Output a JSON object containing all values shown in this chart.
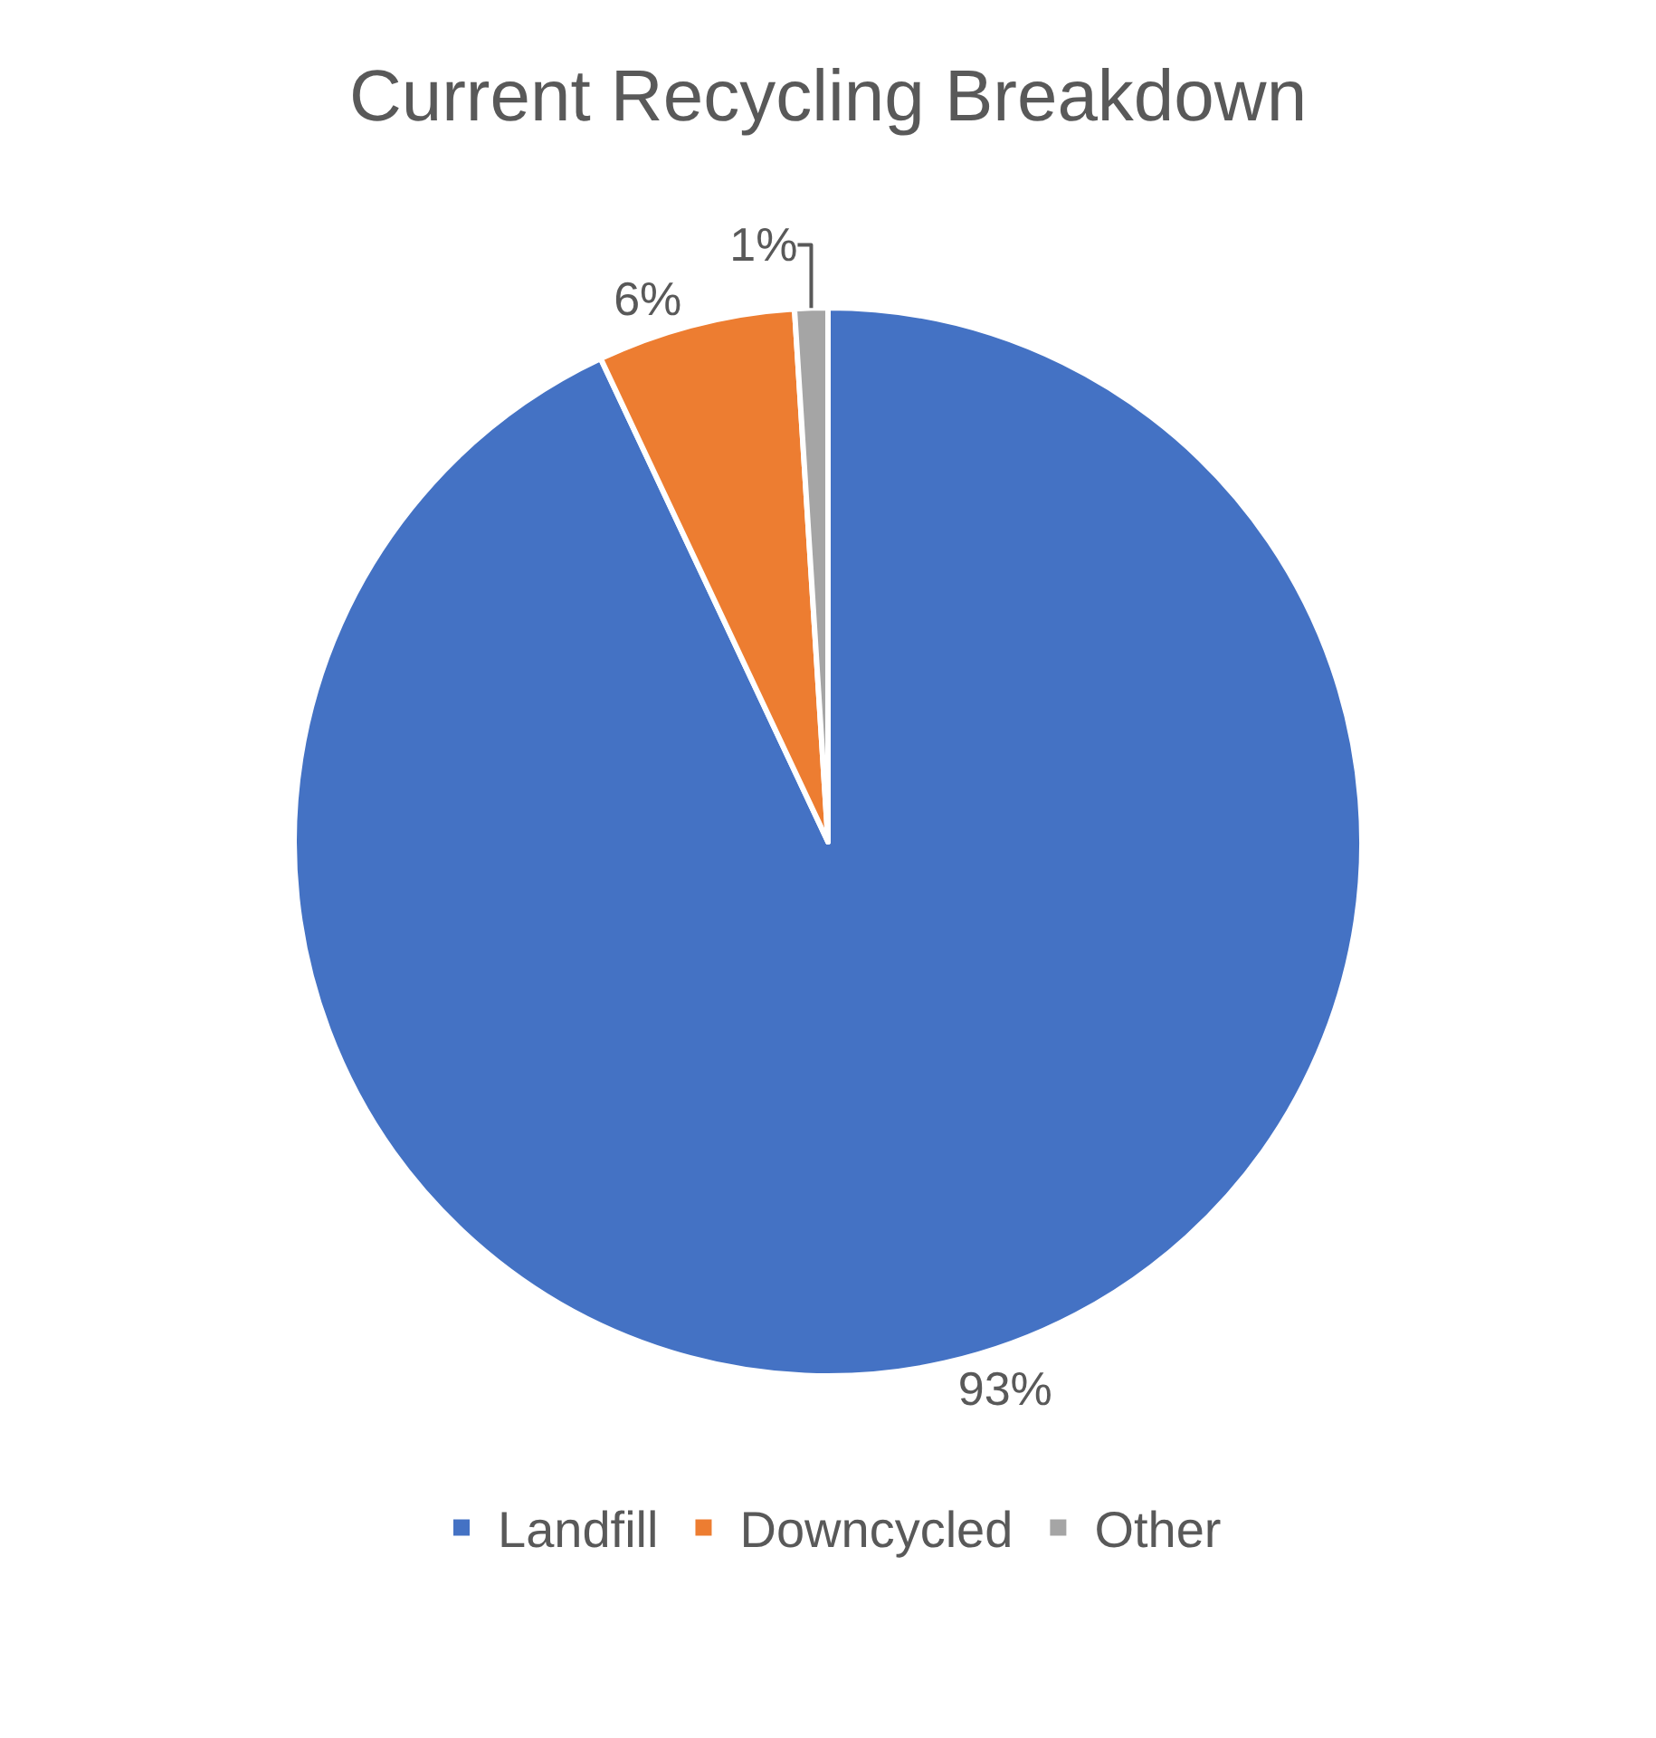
{
  "chart_data": {
    "type": "pie",
    "title": "Current Recycling Breakdown",
    "categories": [
      "Landfill",
      "Downcycled",
      "Other"
    ],
    "values": [
      93,
      6,
      1
    ],
    "colors": [
      "#4472c4",
      "#ed7d31",
      "#a5a5a5"
    ],
    "value_labels": [
      "93%",
      "6%",
      "1%"
    ],
    "legend": "bottom"
  }
}
